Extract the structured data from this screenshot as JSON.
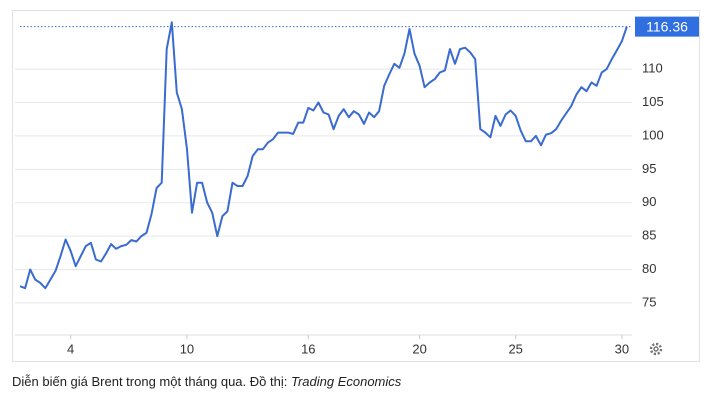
{
  "chart_data": {
    "type": "line",
    "caption": "Diễn biến giá Brent trong một tháng qua. Đồ thị:",
    "source": "Trading Economics",
    "color": "#3a6bd0",
    "grid": true,
    "x": [
      0,
      1,
      2,
      3,
      4,
      5,
      6,
      7,
      8,
      9,
      10,
      11,
      12,
      13,
      14,
      15,
      16,
      17,
      18,
      19,
      20,
      21,
      22,
      23,
      24,
      25,
      26,
      27,
      28,
      29,
      30,
      31,
      32,
      33,
      34,
      35,
      36,
      37,
      38,
      39,
      40,
      41,
      42,
      43,
      44,
      45,
      46,
      47,
      48,
      49,
      50,
      51,
      52,
      53,
      54,
      55,
      56,
      57,
      58,
      59,
      60,
      61,
      62,
      63,
      64,
      65,
      66,
      67,
      68,
      69,
      70,
      71,
      72,
      73,
      74,
      75,
      76,
      77,
      78,
      79,
      80,
      81,
      82,
      83,
      84,
      85,
      86,
      87,
      88,
      89,
      90,
      91,
      92,
      93,
      94,
      95,
      96,
      97,
      98,
      99,
      100,
      101,
      102,
      103,
      104,
      105,
      106,
      107,
      108,
      109,
      110,
      111,
      112,
      113,
      114,
      115,
      116,
      117,
      118,
      119,
      120
    ],
    "values": [
      77.5,
      77.2,
      80,
      78.5,
      78,
      77.2,
      78.5,
      79.8,
      82,
      84.5,
      82.8,
      80.5,
      82,
      83.5,
      84,
      81.5,
      81.2,
      82.4,
      83.8,
      83.1,
      83.5,
      83.7,
      84.4,
      84.2,
      85,
      85.5,
      88.3,
      92.2,
      93,
      113,
      117,
      106.5,
      104,
      98,
      88.5,
      93,
      93,
      90,
      88.5,
      85,
      88,
      88.7,
      93,
      92.5,
      92.5,
      94,
      97,
      98,
      98,
      99,
      99.5,
      100.5,
      100.5,
      100.5,
      100.3,
      102,
      102,
      104.2,
      103.8,
      105,
      103.5,
      103.2,
      101,
      103,
      104,
      102.8,
      103.7,
      103.2,
      101.8,
      103.5,
      102.8,
      103.7,
      107.5,
      109.2,
      110.8,
      110.2,
      112.3,
      116,
      112.3,
      110.5,
      107.3,
      108,
      108.5,
      109.5,
      109.8,
      113,
      110.8,
      113,
      113.2,
      112.5,
      111.5,
      101,
      100.5,
      99.8,
      103,
      101.5,
      103.2,
      103.8,
      103,
      100.8,
      99.2,
      99.2,
      100,
      98.6,
      100.2,
      100.4,
      101,
      102.3,
      103.4,
      104.5,
      106.2,
      107.3,
      106.7,
      108,
      107.5,
      109.5,
      110,
      111.5,
      112.8,
      114.2,
      116.36
    ],
    "xlim": [
      -1,
      121
    ],
    "xticks": [
      {
        "value": 10,
        "label": "4"
      },
      {
        "value": 33,
        "label": "10"
      },
      {
        "value": 57,
        "label": "16"
      },
      {
        "value": 79,
        "label": "20"
      },
      {
        "value": 98,
        "label": "25"
      },
      {
        "value": 119,
        "label": "30"
      }
    ],
    "ylim": [
      70.2,
      118.1
    ],
    "yticks": [
      75,
      80,
      85,
      90,
      95,
      100,
      105,
      110
    ]
  }
}
